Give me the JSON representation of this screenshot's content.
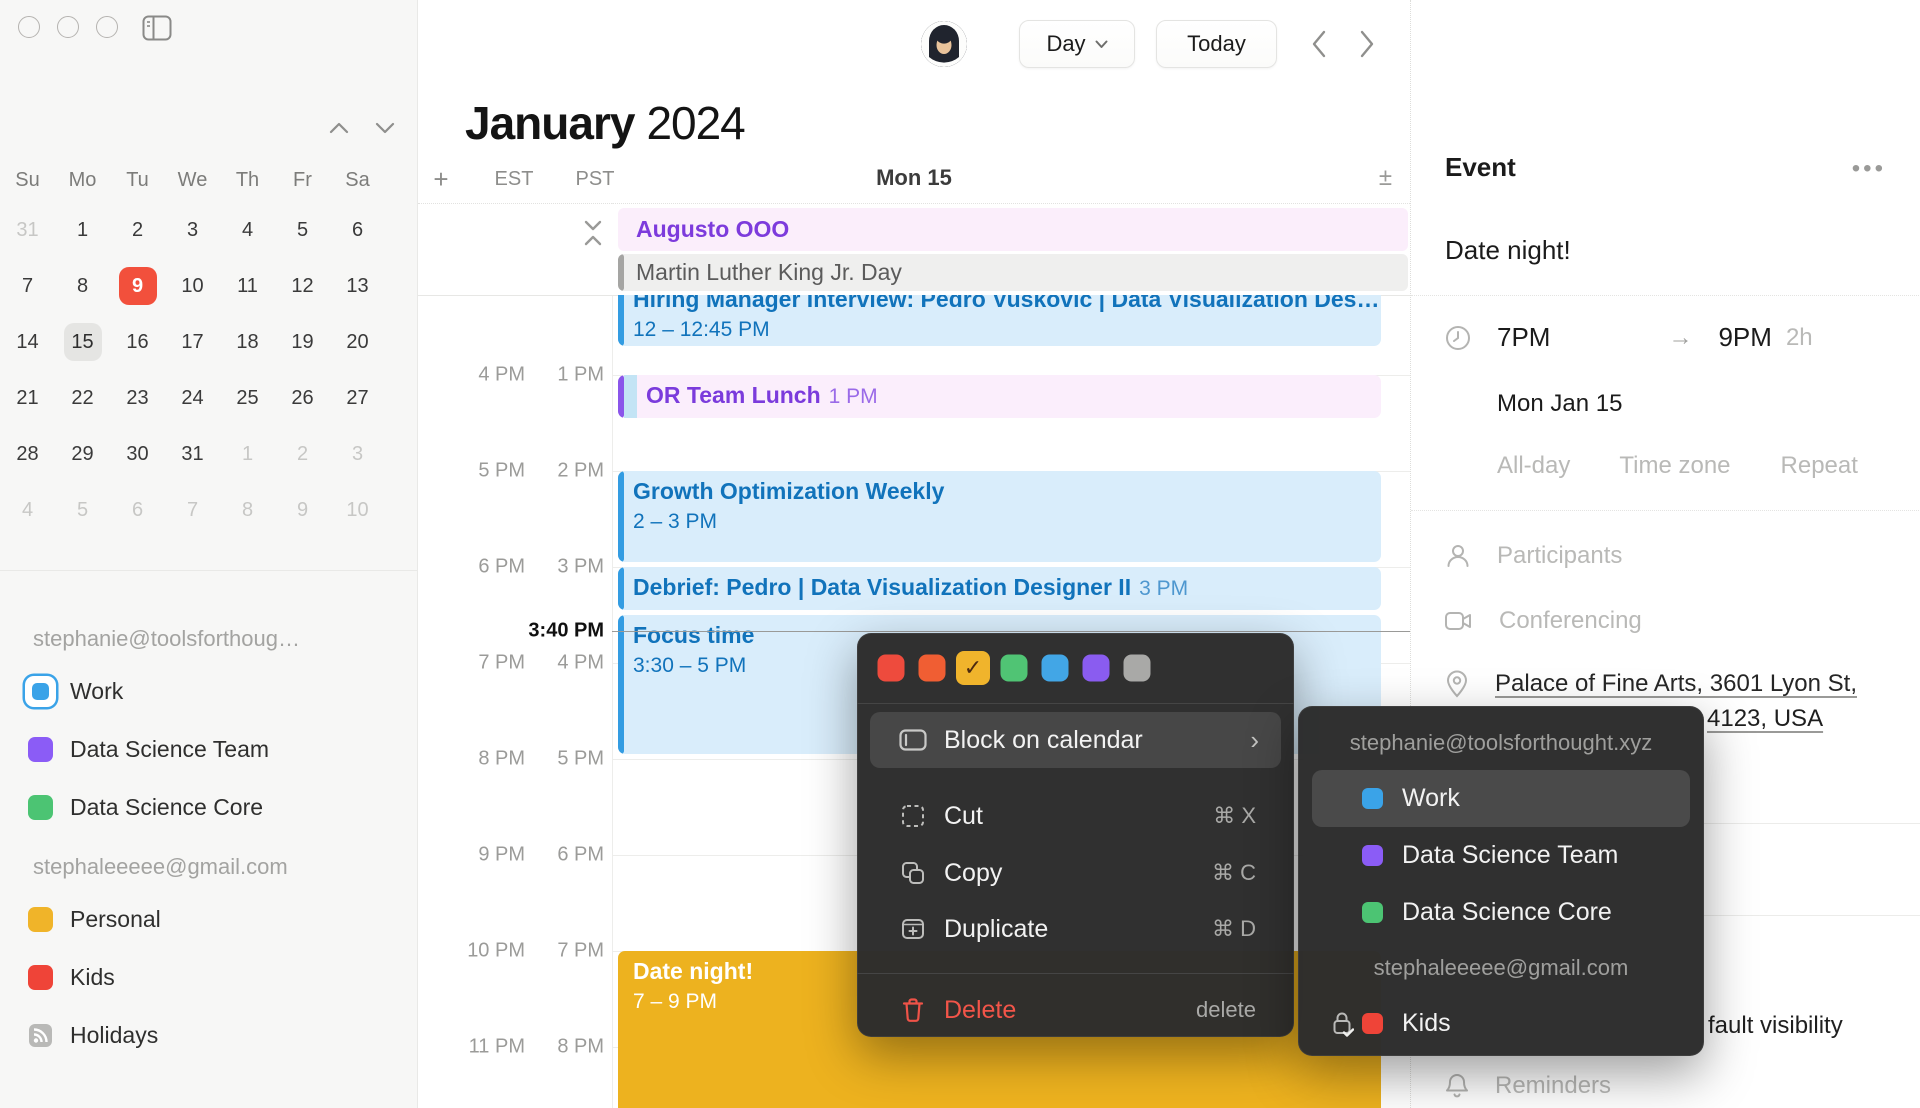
{
  "window": {
    "controls": [
      "close",
      "minimize",
      "zoom"
    ],
    "sidebar_toggle_icon": "panel-icon"
  },
  "header": {
    "month": "January",
    "year": "2024",
    "view_selector": "Day",
    "today_button": "Today",
    "prev_icon": "chevron-left",
    "next_icon": "chevron-right",
    "avatar": "user-avatar"
  },
  "sidebar": {
    "mini_calendar": {
      "weekdays": [
        "Su",
        "Mo",
        "Tu",
        "We",
        "Th",
        "Fr",
        "Sa"
      ],
      "weeks": [
        [
          {
            "t": "31",
            "s": "muted"
          },
          {
            "t": "1"
          },
          {
            "t": "2"
          },
          {
            "t": "3"
          },
          {
            "t": "4"
          },
          {
            "t": "5"
          },
          {
            "t": "6"
          }
        ],
        [
          {
            "t": "7"
          },
          {
            "t": "8"
          },
          {
            "t": "9",
            "s": "today"
          },
          {
            "t": "10"
          },
          {
            "t": "11"
          },
          {
            "t": "12"
          },
          {
            "t": "13"
          }
        ],
        [
          {
            "t": "14"
          },
          {
            "t": "15",
            "s": "selected"
          },
          {
            "t": "16"
          },
          {
            "t": "17"
          },
          {
            "t": "18"
          },
          {
            "t": "19"
          },
          {
            "t": "20"
          }
        ],
        [
          {
            "t": "21"
          },
          {
            "t": "22"
          },
          {
            "t": "23"
          },
          {
            "t": "24"
          },
          {
            "t": "25"
          },
          {
            "t": "26"
          },
          {
            "t": "27"
          }
        ],
        [
          {
            "t": "28"
          },
          {
            "t": "29"
          },
          {
            "t": "30"
          },
          {
            "t": "31"
          },
          {
            "t": "1",
            "s": "muted"
          },
          {
            "t": "2",
            "s": "muted"
          },
          {
            "t": "3",
            "s": "muted"
          }
        ],
        [
          {
            "t": "4",
            "s": "muted"
          },
          {
            "t": "5",
            "s": "muted"
          },
          {
            "t": "6",
            "s": "muted"
          },
          {
            "t": "7",
            "s": "muted"
          },
          {
            "t": "8",
            "s": "muted"
          },
          {
            "t": "9",
            "s": "muted"
          },
          {
            "t": "10",
            "s": "muted"
          }
        ]
      ]
    },
    "accounts": [
      {
        "email": "stephanie@toolsforthoug…",
        "calendars": [
          {
            "name": "Work",
            "color": "#3aa3e8",
            "selected": true
          },
          {
            "name": "Data Science Team",
            "color": "#8b5cf6"
          },
          {
            "name": "Data Science Core",
            "color": "#4cc473"
          }
        ]
      },
      {
        "email": "stephaleeeee@gmail.com",
        "calendars": [
          {
            "name": "Personal",
            "color": "#f0b429"
          },
          {
            "name": "Kids",
            "color": "#ef4438"
          },
          {
            "name": "Holidays",
            "icon": "rss-icon",
            "color": "#a9a9a7"
          }
        ]
      }
    ]
  },
  "calendar": {
    "day_header": "Mon 15",
    "timezones": [
      "EST",
      "PST"
    ],
    "add_icon": "+",
    "density_icon": "±",
    "gutter_rows": [
      {
        "est": "4 PM",
        "pst": "1 PM"
      },
      {
        "est": "5 PM",
        "pst": "2 PM"
      },
      {
        "est": "6 PM",
        "pst": "3 PM"
      },
      {
        "est": "7 PM",
        "pst": "4 PM"
      },
      {
        "est": "8 PM",
        "pst": "5 PM"
      },
      {
        "est": "9 PM",
        "pst": "6 PM"
      },
      {
        "est": "10 PM",
        "pst": "7 PM"
      },
      {
        "est": "11 PM",
        "pst": "8 PM"
      }
    ],
    "now": {
      "label": "3:40 PM",
      "minutes": 940
    },
    "allday_events": [
      {
        "title": "Augusto OOO",
        "role": "pinkday"
      },
      {
        "title": "Martin Luther King Jr. Day",
        "role": "grayday"
      }
    ],
    "events": [
      {
        "title": "Hiring Manager Interview: Pedro Vuskovic | Data Visualization Des…",
        "time": "12 – 12:45 PM",
        "start": 720,
        "end": 765,
        "role": "blue"
      },
      {
        "title": "OR Team Lunch",
        "suffix": "1 PM",
        "start": 780,
        "end": 810,
        "role": "pink"
      },
      {
        "title": "Growth Optimization Weekly",
        "time": "2 – 3 PM",
        "start": 840,
        "end": 900,
        "role": "blue"
      },
      {
        "title": "Debrief: Pedro | Data Visualization Designer II",
        "suffix": "3 PM",
        "start": 900,
        "end": 930,
        "role": "blue"
      },
      {
        "title": "Focus time",
        "time": "3:30 – 5 PM",
        "start": 930,
        "end": 1020,
        "role": "blue"
      },
      {
        "title": "Date night!",
        "time": "7 – 9 PM",
        "start": 1140,
        "end": 1260,
        "role": "yellow"
      }
    ]
  },
  "event_panel": {
    "header": "Event",
    "more_icon": "ellipsis",
    "title": "Date night!",
    "start_time": "7PM",
    "end_time": "9PM",
    "duration": "2h",
    "date": "Mon Jan 15",
    "options": [
      "All-day",
      "Time zone",
      "Repeat"
    ],
    "participants_placeholder": "Participants",
    "conferencing_placeholder": "Conferencing",
    "location_line1": "Palace of Fine Arts, 3601 Lyon St,",
    "location_line2_fragment": "4123, USA",
    "visibility_fragment": "fault visibility",
    "reminders_placeholder": "Reminders"
  },
  "context_menu": {
    "swatches": [
      {
        "color": "#ee4b3d"
      },
      {
        "color": "#f05e33",
        "textured": true
      },
      {
        "color": "#f0b42c",
        "selected": true
      },
      {
        "color": "#50c474"
      },
      {
        "color": "#42a6e6"
      },
      {
        "color": "#8a5cf0"
      },
      {
        "color": "#a9a9a7"
      }
    ],
    "items": [
      {
        "label": "Block on calendar",
        "icon": "block-calendar-icon",
        "arrow": true,
        "highlight": true
      },
      {
        "label": "Cut",
        "icon": "cut-icon",
        "shortcut": "⌘ X"
      },
      {
        "label": "Copy",
        "icon": "copy-icon",
        "shortcut": "⌘ C"
      },
      {
        "label": "Duplicate",
        "icon": "duplicate-icon",
        "shortcut": "⌘ D"
      },
      {
        "label": "Delete",
        "icon": "trash-icon",
        "shortcut": "delete",
        "danger": true
      }
    ]
  },
  "submenu": {
    "groups": [
      {
        "header": "stephanie@toolsforthought.xyz",
        "items": [
          {
            "name": "Work",
            "color": "#3aa3e8",
            "highlight": true
          },
          {
            "name": "Data Science Team",
            "color": "#8b5cf6"
          },
          {
            "name": "Data Science Core",
            "color": "#4cc473"
          }
        ]
      },
      {
        "header": "stephaleeeee@gmail.com",
        "items": [
          {
            "name": "Kids",
            "color": "#ef4438",
            "locked": true
          }
        ]
      }
    ]
  },
  "colors": {
    "today_red": "#f2503c",
    "event_roles": {
      "blue": {
        "bg": "#d9edfb",
        "bar": "#339ce2",
        "text": "#1173bb",
        "light": "#4e97cf"
      },
      "pink": {
        "bg": "#fbeefc",
        "bar": "#8a55ea",
        "strip": "#c3e4f5",
        "text": "#7b3bdc",
        "light": "#9a6ae8"
      },
      "yellow": {
        "bg": "#edb21f",
        "bar": "#edb21f",
        "text": "#ffffff",
        "light": "#ffffff"
      },
      "pinkday": {
        "bg": "#fbeefb",
        "text": "#7d3bdc"
      },
      "grayday": {
        "bg": "#efefee",
        "bar": "#a5a5a3",
        "text": "#5b5b5b"
      }
    },
    "menu_bg": "#2d2d2d",
    "menu_highlight": "#474747",
    "danger": "#f25549"
  }
}
